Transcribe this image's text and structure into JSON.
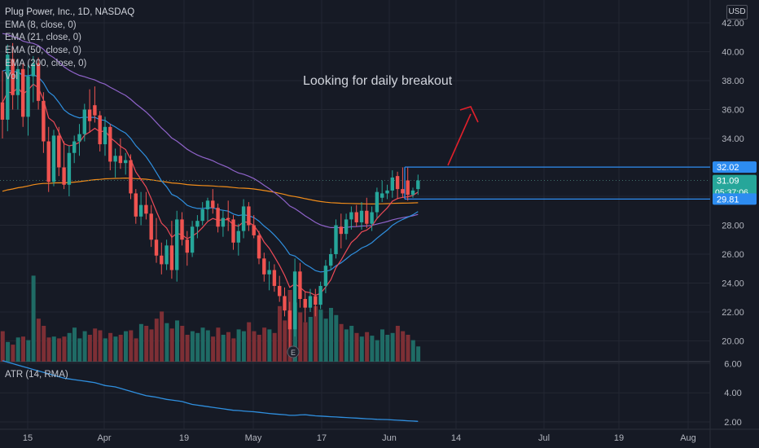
{
  "header": {
    "symbol_title": "Plug Power, Inc., 1D, NASDAQ",
    "currency": "USD"
  },
  "legend": [
    "EMA (8, close, 0)",
    "EMA (21, close, 0)",
    "EMA (50, close, 0)",
    "EMA (200, close, 0)",
    "Vol"
  ],
  "annotation": "Looking for daily breakout",
  "atr_label": "ATR (14, RMA)",
  "colors": {
    "up": "#26a69a",
    "down": "#ef5350",
    "vol_up": "#1f6b65",
    "vol_down": "#7d2f35",
    "ema8": "#ec4a57",
    "ema21": "#2f8fdf",
    "ema50": "#8f63c9",
    "ema200": "#f08c1a",
    "level_line": "#2d8cf0",
    "arrow": "#e0202b",
    "grid": "#232732",
    "axis_text": "#b2b5be",
    "price_tag": "#2962ff"
  },
  "chart_data": {
    "type": "candlestick",
    "y_axis": {
      "ticks": [
        "42.00",
        "40.00",
        "38.00",
        "36.00",
        "34.00",
        "32.00",
        "30.00",
        "28.00",
        "26.00",
        "24.00",
        "22.00",
        "20.00"
      ],
      "range": [
        19.2,
        42.9
      ]
    },
    "atr_axis": {
      "ticks": [
        "6.00",
        "4.00",
        "2.00"
      ],
      "range": [
        1.5,
        6.3
      ]
    },
    "x_axis": {
      "ticks": [
        "15",
        "Apr",
        "19",
        "May",
        "17",
        "Jun",
        "14",
        "Jul",
        "19",
        "Aug"
      ]
    },
    "price_labels": [
      {
        "text": "32.02",
        "value": 32.02,
        "color": "#2d8cf0"
      },
      {
        "text": "31.09",
        "sub": "05:37:06",
        "value": 31.09,
        "color": "#26a69a"
      },
      {
        "text": "29.81",
        "value": 29.81,
        "color": "#2d8cf0"
      }
    ],
    "levels": [
      32.02,
      29.81
    ],
    "candles": [
      {
        "o": 36.5,
        "h": 38.7,
        "l": 34.0,
        "c": 35.3
      },
      {
        "o": 35.3,
        "h": 40.5,
        "l": 34.5,
        "c": 39.8
      },
      {
        "o": 39.5,
        "h": 40.6,
        "l": 36.0,
        "c": 37.0
      },
      {
        "o": 37.0,
        "h": 39.5,
        "l": 36.0,
        "c": 38.8
      },
      {
        "o": 38.8,
        "h": 39.2,
        "l": 34.8,
        "c": 35.5
      },
      {
        "o": 35.5,
        "h": 39.1,
        "l": 34.2,
        "c": 38.3
      },
      {
        "o": 38.3,
        "h": 39.7,
        "l": 36.5,
        "c": 39.2
      },
      {
        "o": 39.2,
        "h": 39.6,
        "l": 36.0,
        "c": 36.6
      },
      {
        "o": 36.6,
        "h": 37.2,
        "l": 33.0,
        "c": 33.8
      },
      {
        "o": 33.8,
        "h": 34.8,
        "l": 30.3,
        "c": 31.0
      },
      {
        "o": 31.0,
        "h": 34.6,
        "l": 30.7,
        "c": 34.2
      },
      {
        "o": 34.2,
        "h": 34.8,
        "l": 31.4,
        "c": 32.0
      },
      {
        "o": 32.0,
        "h": 33.8,
        "l": 30.5,
        "c": 30.8
      },
      {
        "o": 30.8,
        "h": 33.5,
        "l": 30.0,
        "c": 33.0
      },
      {
        "o": 33.0,
        "h": 34.2,
        "l": 32.3,
        "c": 33.8
      },
      {
        "o": 33.8,
        "h": 35.0,
        "l": 32.8,
        "c": 34.3
      },
      {
        "o": 34.3,
        "h": 36.4,
        "l": 33.8,
        "c": 36.0
      },
      {
        "o": 36.0,
        "h": 37.4,
        "l": 34.4,
        "c": 35.2
      },
      {
        "o": 36.3,
        "h": 37.6,
        "l": 35.1,
        "c": 35.6
      },
      {
        "o": 35.6,
        "h": 35.9,
        "l": 33.1,
        "c": 33.6
      },
      {
        "o": 33.6,
        "h": 35.5,
        "l": 32.8,
        "c": 34.8
      },
      {
        "o": 34.8,
        "h": 35.0,
        "l": 31.8,
        "c": 32.4
      },
      {
        "o": 32.4,
        "h": 33.3,
        "l": 31.3,
        "c": 32.8
      },
      {
        "o": 32.8,
        "h": 34.0,
        "l": 31.9,
        "c": 32.3
      },
      {
        "o": 32.3,
        "h": 33.0,
        "l": 31.5,
        "c": 32.5
      },
      {
        "o": 32.5,
        "h": 32.9,
        "l": 29.8,
        "c": 30.2
      },
      {
        "o": 30.2,
        "h": 30.5,
        "l": 28.1,
        "c": 28.6
      },
      {
        "o": 28.6,
        "h": 30.3,
        "l": 28.0,
        "c": 29.4
      },
      {
        "o": 29.4,
        "h": 30.3,
        "l": 28.4,
        "c": 28.8
      },
      {
        "o": 28.8,
        "h": 29.4,
        "l": 26.5,
        "c": 27.0
      },
      {
        "o": 27.0,
        "h": 28.5,
        "l": 25.4,
        "c": 25.9
      },
      {
        "o": 25.9,
        "h": 26.8,
        "l": 24.6,
        "c": 25.3
      },
      {
        "o": 25.3,
        "h": 27.0,
        "l": 24.9,
        "c": 26.6
      },
      {
        "o": 26.6,
        "h": 28.3,
        "l": 24.3,
        "c": 24.9
      },
      {
        "o": 24.9,
        "h": 29.0,
        "l": 24.1,
        "c": 28.4
      },
      {
        "o": 28.4,
        "h": 28.9,
        "l": 26.6,
        "c": 27.0
      },
      {
        "o": 27.0,
        "h": 27.6,
        "l": 25.2,
        "c": 26.1
      },
      {
        "o": 26.1,
        "h": 28.3,
        "l": 25.8,
        "c": 27.9
      },
      {
        "o": 27.9,
        "h": 28.7,
        "l": 27.1,
        "c": 28.3
      },
      {
        "o": 28.3,
        "h": 29.6,
        "l": 28.0,
        "c": 29.1
      },
      {
        "o": 29.1,
        "h": 29.9,
        "l": 28.3,
        "c": 29.7
      },
      {
        "o": 29.7,
        "h": 30.5,
        "l": 28.8,
        "c": 29.2
      },
      {
        "o": 29.2,
        "h": 29.5,
        "l": 27.5,
        "c": 27.9
      },
      {
        "o": 27.9,
        "h": 29.0,
        "l": 27.2,
        "c": 28.5
      },
      {
        "o": 28.5,
        "h": 29.7,
        "l": 27.6,
        "c": 28.4
      },
      {
        "o": 28.4,
        "h": 28.7,
        "l": 26.3,
        "c": 26.8
      },
      {
        "o": 26.8,
        "h": 28.1,
        "l": 25.9,
        "c": 27.6
      },
      {
        "o": 27.6,
        "h": 29.8,
        "l": 27.1,
        "c": 29.3
      },
      {
        "o": 29.3,
        "h": 29.6,
        "l": 27.6,
        "c": 28.0
      },
      {
        "o": 28.0,
        "h": 28.7,
        "l": 27.1,
        "c": 27.3
      },
      {
        "o": 27.3,
        "h": 27.6,
        "l": 25.3,
        "c": 25.7
      },
      {
        "o": 25.7,
        "h": 26.1,
        "l": 24.1,
        "c": 24.6
      },
      {
        "o": 24.6,
        "h": 25.5,
        "l": 23.5,
        "c": 24.9
      },
      {
        "o": 24.9,
        "h": 25.3,
        "l": 23.4,
        "c": 23.8
      },
      {
        "o": 23.8,
        "h": 24.5,
        "l": 22.7,
        "c": 23.1
      },
      {
        "o": 23.1,
        "h": 23.7,
        "l": 21.7,
        "c": 22.1
      },
      {
        "o": 22.1,
        "h": 22.7,
        "l": 19.5,
        "c": 20.8
      },
      {
        "o": 20.8,
        "h": 25.7,
        "l": 20.3,
        "c": 24.8
      },
      {
        "o": 24.8,
        "h": 25.4,
        "l": 22.3,
        "c": 22.9
      },
      {
        "o": 22.9,
        "h": 23.4,
        "l": 21.3,
        "c": 22.3
      },
      {
        "o": 22.3,
        "h": 23.6,
        "l": 22.0,
        "c": 23.1
      },
      {
        "o": 23.1,
        "h": 23.6,
        "l": 21.7,
        "c": 22.5
      },
      {
        "o": 22.5,
        "h": 24.1,
        "l": 22.2,
        "c": 23.8
      },
      {
        "o": 23.8,
        "h": 25.6,
        "l": 23.3,
        "c": 25.2
      },
      {
        "o": 25.2,
        "h": 26.4,
        "l": 24.9,
        "c": 26.0
      },
      {
        "o": 26.0,
        "h": 28.4,
        "l": 25.7,
        "c": 28.0
      },
      {
        "o": 27.9,
        "h": 28.8,
        "l": 26.4,
        "c": 27.4
      },
      {
        "o": 27.4,
        "h": 28.8,
        "l": 27.0,
        "c": 28.4
      },
      {
        "o": 28.4,
        "h": 29.3,
        "l": 27.7,
        "c": 28.9
      },
      {
        "o": 28.9,
        "h": 29.4,
        "l": 27.9,
        "c": 28.2
      },
      {
        "o": 28.2,
        "h": 29.6,
        "l": 27.7,
        "c": 29.0
      },
      {
        "o": 29.0,
        "h": 29.9,
        "l": 27.8,
        "c": 28.1
      },
      {
        "o": 28.1,
        "h": 29.3,
        "l": 27.6,
        "c": 28.9
      },
      {
        "o": 28.9,
        "h": 30.6,
        "l": 28.5,
        "c": 30.3
      },
      {
        "o": 29.9,
        "h": 31.1,
        "l": 29.6,
        "c": 30.2
      },
      {
        "o": 30.2,
        "h": 30.8,
        "l": 29.8,
        "c": 30.4
      },
      {
        "o": 30.4,
        "h": 31.8,
        "l": 29.9,
        "c": 31.3
      },
      {
        "o": 31.4,
        "h": 31.7,
        "l": 29.8,
        "c": 30.5
      },
      {
        "o": 30.5,
        "h": 32.0,
        "l": 29.9,
        "c": 30.2
      },
      {
        "o": 31.1,
        "h": 32.0,
        "l": 29.7,
        "c": 30.1
      },
      {
        "o": 30.1,
        "h": 30.6,
        "l": 29.9,
        "c": 30.4
      },
      {
        "o": 30.5,
        "h": 31.5,
        "l": 30.1,
        "c": 31.1
      }
    ],
    "volume_heights": [
      0.34,
      0.22,
      0.19,
      0.27,
      0.28,
      0.24,
      0.96,
      0.48,
      0.4,
      0.27,
      0.28,
      0.26,
      0.28,
      0.32,
      0.38,
      0.26,
      0.34,
      0.3,
      0.37,
      0.35,
      0.26,
      0.32,
      0.28,
      0.3,
      0.34,
      0.35,
      0.26,
      0.42,
      0.4,
      0.36,
      0.48,
      0.56,
      0.43,
      0.37,
      0.46,
      0.4,
      0.3,
      0.34,
      0.32,
      0.38,
      0.35,
      0.28,
      0.38,
      0.3,
      0.33,
      0.26,
      0.36,
      0.34,
      0.44,
      0.34,
      0.3,
      0.38,
      0.36,
      0.32,
      0.62,
      0.46,
      0.8,
      0.66,
      0.55,
      0.44,
      0.5,
      0.62,
      0.58,
      0.48,
      0.6,
      0.52,
      0.42,
      0.36,
      0.4,
      0.32,
      0.28,
      0.33,
      0.29,
      0.24,
      0.36,
      0.3,
      0.32,
      0.4,
      0.34,
      0.3,
      0.24,
      0.17
    ],
    "atr": [
      6.2,
      6.1,
      6.0,
      5.9,
      5.8,
      5.7,
      5.6,
      5.5,
      5.4,
      5.3,
      5.2,
      5.1,
      5.0,
      4.95,
      4.9,
      4.85,
      4.8,
      4.75,
      4.7,
      4.6,
      4.5,
      4.45,
      4.4,
      4.3,
      4.2,
      4.1,
      4.0,
      3.9,
      3.8,
      3.75,
      3.7,
      3.62,
      3.55,
      3.5,
      3.45,
      3.4,
      3.3,
      3.2,
      3.15,
      3.1,
      3.05,
      3.0,
      2.95,
      2.9,
      2.85,
      2.8,
      2.78,
      2.75,
      2.72,
      2.7,
      2.66,
      2.62,
      2.58,
      2.55,
      2.52,
      2.5,
      2.45,
      2.45,
      2.48,
      2.5,
      2.46,
      2.42,
      2.4,
      2.38,
      2.36,
      2.34,
      2.32,
      2.3,
      2.28,
      2.26,
      2.24,
      2.22,
      2.2,
      2.18,
      2.17,
      2.16,
      2.14,
      2.12,
      2.1,
      2.08,
      2.06,
      2.04
    ]
  }
}
